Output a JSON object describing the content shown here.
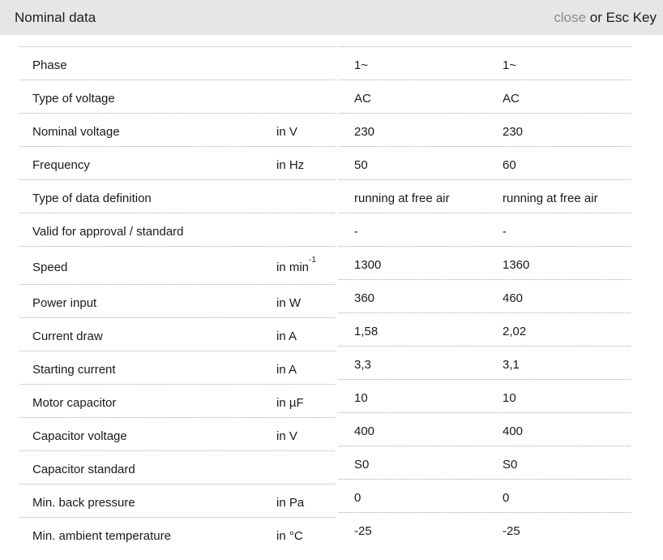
{
  "header": {
    "title": "Nominal data",
    "close_label": "close",
    "close_suffix": " or Esc Key"
  },
  "colors": {
    "header_background": "#e6e6e6",
    "close_link_gray": "#8a8a8a",
    "text": "#1a1a1a",
    "row_divider": "#ababab"
  },
  "table": {
    "rows": [
      {
        "label": "Phase",
        "unit": "",
        "unit_sup": "",
        "v1": "1~",
        "v2": "1~"
      },
      {
        "label": "Type of voltage",
        "unit": "",
        "unit_sup": "",
        "v1": "AC",
        "v2": "AC"
      },
      {
        "label": "Nominal voltage",
        "unit": "in V",
        "unit_sup": "",
        "v1": "230",
        "v2": "230"
      },
      {
        "label": "Frequency",
        "unit": "in Hz",
        "unit_sup": "",
        "v1": "50",
        "v2": "60"
      },
      {
        "label": "Type of data definition",
        "unit": "",
        "unit_sup": "",
        "v1": "running at free air",
        "v2": "running at free air"
      },
      {
        "label": "Valid for approval / standard",
        "unit": "",
        "unit_sup": "",
        "v1": "-",
        "v2": "-"
      },
      {
        "label": "Speed",
        "unit": "in min",
        "unit_sup": "-1",
        "v1": "1300",
        "v2": "1360"
      },
      {
        "label": "Power input",
        "unit": "in W",
        "unit_sup": "",
        "v1": "360",
        "v2": "460"
      },
      {
        "label": "Current draw",
        "unit": "in A",
        "unit_sup": "",
        "v1": "1,58",
        "v2": "2,02"
      },
      {
        "label": "Starting current",
        "unit": "in A",
        "unit_sup": "",
        "v1": "3,3",
        "v2": "3,1"
      },
      {
        "label": "Motor capacitor",
        "unit": "in µF",
        "unit_sup": "",
        "v1": "10",
        "v2": "10"
      },
      {
        "label": "Capacitor voltage",
        "unit": "in V",
        "unit_sup": "",
        "v1": "400",
        "v2": "400"
      },
      {
        "label": "Capacitor standard",
        "unit": "",
        "unit_sup": "",
        "v1": "S0",
        "v2": "S0"
      },
      {
        "label": "Min. back pressure",
        "unit": "in Pa",
        "unit_sup": "",
        "v1": "0",
        "v2": "0"
      },
      {
        "label": "Min. ambient temperature",
        "unit": "in °C",
        "unit_sup": "",
        "v1": "-25",
        "v2": "-25"
      }
    ]
  }
}
